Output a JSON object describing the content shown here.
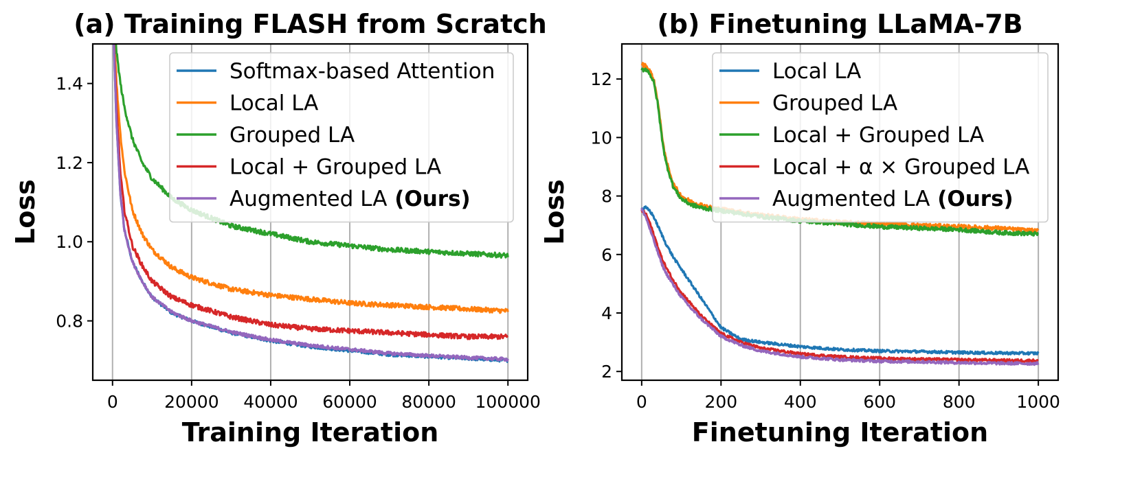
{
  "chart_data": [
    {
      "type": "line",
      "title": "(a) Training FLASH from Scratch",
      "xlabel": "Training Iteration",
      "ylabel": "Loss",
      "xlim": [
        -5000,
        105000
      ],
      "ylim": [
        0.65,
        1.5
      ],
      "xticks": [
        0,
        20000,
        40000,
        60000,
        80000,
        100000
      ],
      "xtick_labels": [
        "0",
        "20000",
        "40000",
        "60000",
        "80000",
        "100000"
      ],
      "yticks": [
        0.8,
        1.0,
        1.2,
        1.4
      ],
      "ytick_labels": [
        "0.8",
        "1.0",
        "1.2",
        "1.4"
      ],
      "grid": "vertical",
      "legend_position": "top-right",
      "x": [
        0,
        1000,
        2000,
        3000,
        5000,
        7500,
        10000,
        15000,
        20000,
        30000,
        40000,
        50000,
        60000,
        70000,
        80000,
        90000,
        100000
      ],
      "series": [
        {
          "name": "Softmax-based Attention",
          "color": "#1f77b4",
          "noise": 0.004,
          "values": [
            1.6,
            1.3,
            1.12,
            1.03,
            0.95,
            0.9,
            0.86,
            0.82,
            0.8,
            0.77,
            0.75,
            0.735,
            0.725,
            0.715,
            0.71,
            0.705,
            0.7
          ]
        },
        {
          "name": "Local LA",
          "color": "#ff7f0e",
          "noise": 0.006,
          "values": [
            1.6,
            1.4,
            1.27,
            1.18,
            1.08,
            1.02,
            0.98,
            0.935,
            0.91,
            0.88,
            0.865,
            0.855,
            0.845,
            0.84,
            0.835,
            0.83,
            0.825
          ]
        },
        {
          "name": "Grouped LA",
          "color": "#2ca02c",
          "noise": 0.006,
          "values": [
            1.6,
            1.48,
            1.4,
            1.34,
            1.26,
            1.2,
            1.16,
            1.11,
            1.08,
            1.04,
            1.02,
            1.0,
            0.99,
            0.98,
            0.975,
            0.97,
            0.965
          ]
        },
        {
          "name": "Local + Grouped LA",
          "color": "#d62728",
          "noise": 0.006,
          "values": [
            1.6,
            1.34,
            1.17,
            1.08,
            0.99,
            0.94,
            0.9,
            0.86,
            0.84,
            0.81,
            0.79,
            0.78,
            0.775,
            0.77,
            0.765,
            0.76,
            0.76
          ]
        },
        {
          "name": "Augmented LA",
          "name_suffix": "(Ours)",
          "color": "#9467bd",
          "noise": 0.004,
          "values": [
            1.6,
            1.3,
            1.12,
            1.03,
            0.95,
            0.9,
            0.86,
            0.822,
            0.8,
            0.772,
            0.752,
            0.738,
            0.728,
            0.718,
            0.712,
            0.707,
            0.703
          ]
        }
      ]
    },
    {
      "type": "line",
      "title": "(b) Finetuning LLaMA-7B",
      "xlabel": "Finetuning Iteration",
      "ylabel": "Loss",
      "xlim": [
        -50,
        1050
      ],
      "ylim": [
        1.7,
        13.2
      ],
      "xticks": [
        0,
        200,
        400,
        600,
        800,
        1000
      ],
      "xtick_labels": [
        "0",
        "200",
        "400",
        "600",
        "800",
        "1000"
      ],
      "yticks": [
        2,
        4,
        6,
        8,
        10,
        12
      ],
      "ytick_labels": [
        "2",
        "4",
        "6",
        "8",
        "10",
        "12"
      ],
      "grid": "vertical",
      "legend_position": "top-right",
      "x": [
        0,
        10,
        20,
        30,
        40,
        50,
        60,
        80,
        100,
        125,
        150,
        175,
        200,
        250,
        300,
        400,
        500,
        600,
        700,
        800,
        900,
        1000
      ],
      "series": [
        {
          "name": "Local LA",
          "color": "#1f77b4",
          "noise": 0.04,
          "values": [
            7.55,
            7.6,
            7.5,
            7.3,
            7.0,
            6.7,
            6.4,
            5.9,
            5.5,
            5.0,
            4.5,
            4.0,
            3.5,
            3.1,
            3.0,
            2.85,
            2.75,
            2.7,
            2.68,
            2.65,
            2.63,
            2.62
          ]
        },
        {
          "name": "Grouped LA",
          "color": "#ff7f0e",
          "noise": 0.06,
          "values": [
            12.5,
            12.45,
            12.3,
            12.0,
            11.3,
            10.2,
            9.3,
            8.4,
            8.0,
            7.8,
            7.7,
            7.6,
            7.55,
            7.45,
            7.35,
            7.2,
            7.1,
            7.05,
            7.0,
            6.95,
            6.9,
            6.8
          ]
        },
        {
          "name": "Local + Grouped LA",
          "color": "#2ca02c",
          "noise": 0.06,
          "values": [
            12.3,
            12.35,
            12.2,
            11.9,
            11.2,
            10.1,
            9.2,
            8.3,
            7.9,
            7.7,
            7.6,
            7.55,
            7.5,
            7.4,
            7.3,
            7.15,
            7.05,
            6.95,
            6.9,
            6.85,
            6.75,
            6.7
          ]
        },
        {
          "name": "Local + α × Grouped LA",
          "color": "#d62728",
          "noise": 0.04,
          "values": [
            7.5,
            7.4,
            7.1,
            6.7,
            6.3,
            5.9,
            5.6,
            5.1,
            4.7,
            4.3,
            3.9,
            3.6,
            3.3,
            3.0,
            2.8,
            2.6,
            2.5,
            2.45,
            2.42,
            2.4,
            2.38,
            2.37
          ]
        },
        {
          "name": "Augmented LA",
          "name_suffix": "(Ours)",
          "color": "#9467bd",
          "noise": 0.04,
          "values": [
            7.55,
            7.3,
            6.9,
            6.5,
            6.1,
            5.7,
            5.4,
            4.95,
            4.55,
            4.15,
            3.8,
            3.5,
            3.2,
            2.9,
            2.7,
            2.5,
            2.4,
            2.35,
            2.33,
            2.3,
            2.28,
            2.27
          ]
        }
      ]
    }
  ]
}
